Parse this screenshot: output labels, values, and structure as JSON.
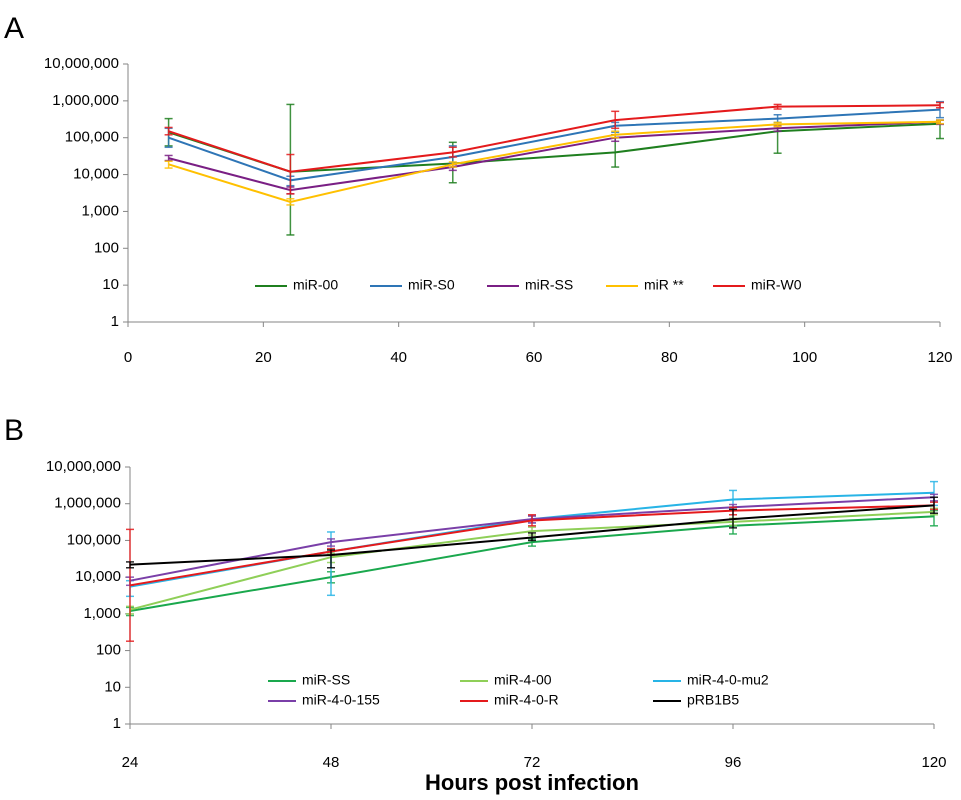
{
  "chart_data": [
    {
      "panel": "A",
      "type": "line",
      "yscale": "log",
      "xlim": [
        0,
        120
      ],
      "xticks": [
        0,
        20,
        40,
        60,
        80,
        100,
        120
      ],
      "ylim": [
        1,
        10000000
      ],
      "yticks": [
        "1",
        "10",
        "100",
        "1,000",
        "10,000",
        "100,000",
        "1,000,000",
        "10,000,000"
      ],
      "legend_position": "bottom-center",
      "x": [
        6,
        24,
        48,
        72,
        96,
        120
      ],
      "series": [
        {
          "name": "miR-00",
          "color": "#1f7f1f",
          "values": [
            140000,
            12000,
            20000,
            40000,
            150000,
            240000
          ],
          "err_low": [
            60000,
            230,
            6000,
            16000,
            38000,
            95000
          ],
          "err_high": [
            330000,
            800000,
            75000,
            120000,
            230000,
            300000
          ]
        },
        {
          "name": "miR-S0",
          "color": "#2e75b6",
          "values": [
            100000,
            7000,
            30000,
            210000,
            330000,
            580000
          ],
          "err_low": [
            55000,
            5000,
            20000,
            140000,
            260000,
            350000
          ],
          "err_high": [
            180000,
            9000,
            60000,
            260000,
            420000,
            950000
          ]
        },
        {
          "name": "miR-SS",
          "color": "#7a1f84",
          "values": [
            28000,
            3800,
            16000,
            100000,
            180000,
            270000
          ],
          "err_low": [
            24000,
            3000,
            13000,
            80000,
            150000,
            230000
          ],
          "err_high": [
            33000,
            4600,
            19000,
            120000,
            210000,
            300000
          ]
        },
        {
          "name": "miR **",
          "color": "#ffc000",
          "values": [
            19000,
            1800,
            19000,
            120000,
            230000,
            270000
          ],
          "err_low": [
            15000,
            1500,
            16000,
            100000,
            200000,
            240000
          ],
          "err_high": [
            23000,
            2200,
            22000,
            150000,
            260000,
            300000
          ]
        },
        {
          "name": "miR-W0",
          "color": "#e41a1c",
          "values": [
            150000,
            12000,
            40000,
            300000,
            700000,
            760000
          ],
          "err_low": [
            120000,
            3000,
            30000,
            180000,
            600000,
            650000
          ],
          "err_high": [
            190000,
            35000,
            55000,
            520000,
            800000,
            900000
          ]
        }
      ]
    },
    {
      "panel": "B",
      "type": "line",
      "yscale": "log",
      "xlabel": "Hours post infection",
      "xlim": [
        24,
        120
      ],
      "xticks": [
        24,
        48,
        72,
        96,
        120
      ],
      "ylim": [
        1,
        10000000
      ],
      "yticks": [
        "1",
        "10",
        "100",
        "1,000",
        "10,000",
        "100,000",
        "1,000,000",
        "10,000,000"
      ],
      "legend_position": "bottom-center",
      "x": [
        24,
        48,
        72,
        96,
        120
      ],
      "series": [
        {
          "name": "miR-SS",
          "color": "#1aa84d",
          "values": [
            1200,
            10000,
            90000,
            250000,
            450000
          ],
          "err_low": [
            900,
            7000,
            70000,
            150000,
            250000
          ],
          "err_high": [
            1500,
            14000,
            110000,
            320000,
            650000
          ]
        },
        {
          "name": "miR-4-00",
          "color": "#8fcf58",
          "values": [
            1300,
            35000,
            180000,
            320000,
            600000
          ],
          "err_low": [
            1000,
            25000,
            140000,
            260000,
            500000
          ],
          "err_high": [
            1600,
            45000,
            230000,
            400000,
            750000
          ]
        },
        {
          "name": "miR-4-0-mu2",
          "color": "#28b4e6",
          "values": [
            5500,
            50000,
            380000,
            1300000,
            2000000
          ],
          "err_low": [
            3000,
            3200,
            300000,
            700000,
            900000
          ],
          "err_high": [
            8000,
            170000,
            470000,
            2300000,
            4000000
          ]
        },
        {
          "name": "miR-4-0-155",
          "color": "#7a3fa8",
          "values": [
            8000,
            90000,
            380000,
            800000,
            1500000
          ],
          "err_low": [
            6000,
            70000,
            300000,
            650000,
            1200000
          ],
          "err_high": [
            10000,
            110000,
            460000,
            950000,
            1800000
          ]
        },
        {
          "name": "miR-4-0-R",
          "color": "#e41a1c",
          "values": [
            6000,
            50000,
            350000,
            650000,
            900000
          ],
          "err_low": [
            180,
            40000,
            250000,
            500000,
            700000
          ],
          "err_high": [
            200000,
            60000,
            500000,
            800000,
            1100000
          ]
        },
        {
          "name": "pRB1B5",
          "color": "#000000",
          "values": [
            22000,
            40000,
            120000,
            380000,
            900000
          ],
          "err_low": [
            18000,
            18000,
            100000,
            220000,
            550000
          ],
          "err_high": [
            26000,
            55000,
            160000,
            700000,
            1500000
          ]
        }
      ]
    }
  ]
}
